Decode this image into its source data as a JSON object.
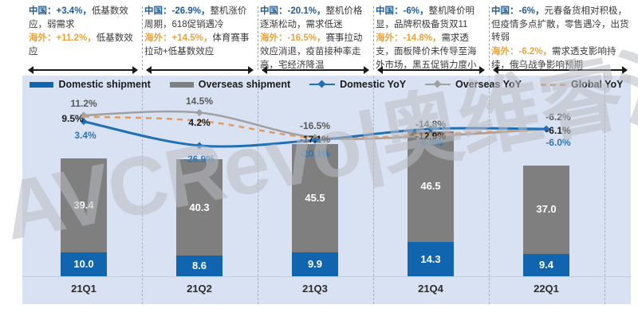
{
  "watermark": "AVCRevo|奥维睿沃",
  "annotations": [
    {
      "cn_label": "中国：",
      "cn_value": "+3.4%，",
      "cn_text": "低基数效应，弱需求",
      "os_label": "海外：",
      "os_value": "+11.2%，",
      "os_text": "低基数效应"
    },
    {
      "cn_label": "中国：",
      "cn_value": "-26.9%，",
      "cn_text": "整机涨价周期，618促销遇冷",
      "os_label": "海外：",
      "os_value": "+14.5%，",
      "os_text": "体育赛事拉动+低基数效应"
    },
    {
      "cn_label": "中国：",
      "cn_value": "-20.1%，",
      "cn_text": "整机价格逐渐松动，需求低迷",
      "os_label": "海外：",
      "os_value": "-16.5%，",
      "os_text": "赛事拉动效应消退，疫苗接种率走高，宅经济降温"
    },
    {
      "cn_label": "中国：",
      "cn_value": "-6%，",
      "cn_text": "整机降价明显，品牌积极备货双11",
      "os_label": "海外：",
      "os_value": "-14.8%，",
      "os_text": "需求透支，面板降价未传导至海外市场，黑五促销力度小"
    },
    {
      "cn_label": "中国：",
      "cn_value": "-6%，",
      "cn_text": "元春备货相对积极，但疫情多点扩散，零售遇冷，出货转弱",
      "os_label": "海外：",
      "os_value": "-6.2%，",
      "os_text": "需求透支影响持续，俄乌战争影响预期"
    }
  ],
  "legend": [
    {
      "label": "Domestic shipment",
      "type": "bar",
      "color": "#1065ae"
    },
    {
      "label": "Overseas shipment",
      "type": "bar",
      "color": "#7f7f7f"
    },
    {
      "label": "Domestic YoY",
      "type": "line",
      "color": "#2170b5"
    },
    {
      "label": "Overseas YoY",
      "type": "line",
      "color": "#a0a0a0"
    },
    {
      "label": "Global YoY",
      "type": "dashed",
      "color": "#e09a62"
    }
  ],
  "chart_data": {
    "type": "bar",
    "subtype": "stacked-bars-with-lines",
    "categories": [
      "21Q1",
      "21Q2",
      "21Q3",
      "21Q4",
      "22Q1"
    ],
    "bar_series": [
      {
        "name": "Domestic shipment",
        "color": "#1065ae",
        "values": [
          10.0,
          8.6,
          9.9,
          14.3,
          9.4
        ],
        "labels": [
          "10.0",
          "8.6",
          "9.9",
          "14.3",
          "9.4"
        ]
      },
      {
        "name": "Overseas shipment",
        "color": "#7f7f7f",
        "values": [
          39.4,
          40.3,
          45.5,
          46.5,
          37.0
        ],
        "labels": [
          "39.4",
          "40.3",
          "45.5",
          "46.5",
          "37.0"
        ]
      }
    ],
    "line_series": [
      {
        "name": "Domestic YoY",
        "color": "#2170b5",
        "style": "solid",
        "marker": "diamond",
        "values": [
          3.4,
          -26.9,
          -20.1,
          -6.0,
          -6.0
        ],
        "labels": [
          "3.4%",
          "-26.9%",
          "-20.1%",
          "-6.0%",
          "-6.0%"
        ],
        "label_color": "#2e75b6"
      },
      {
        "name": "Overseas YoY",
        "color": "#a0a0a0",
        "style": "solid",
        "marker": "diamond",
        "values": [
          11.2,
          14.5,
          -16.5,
          -14.8,
          -6.2
        ],
        "labels": [
          "11.2%",
          "14.5%",
          "-16.5%",
          "-14.8%",
          "-6.2%"
        ],
        "label_color": "#595959"
      },
      {
        "name": "Global YoY",
        "color": "#e09a62",
        "style": "dashed",
        "marker": "none",
        "values": [
          9.5,
          4.2,
          -17.1,
          -12.9,
          -6.1
        ],
        "labels": [
          "9.5%",
          "4.2%",
          "-17.1%",
          "-12.9%",
          "-6.1%"
        ],
        "label_color": "#1a1a1a"
      }
    ],
    "stacked": true,
    "grid": "vertical-dashed",
    "legend_position": "top",
    "panel_background": "#d9e2f3"
  }
}
